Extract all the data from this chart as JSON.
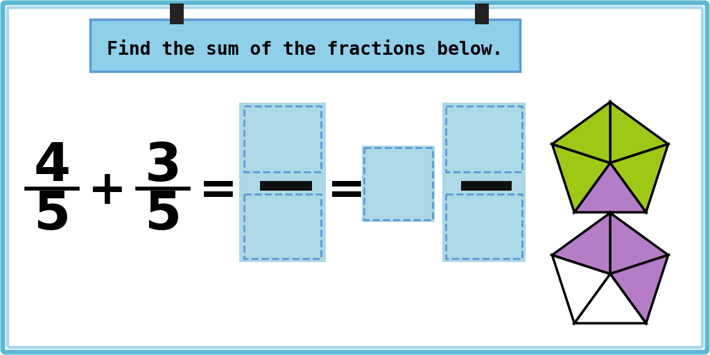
{
  "title": "Find the sum of the fractions below.",
  "bg_color": "#ffffff",
  "outer_border_color_outer": "#5BB8D4",
  "outer_border_color_inner": "#A8D8EA",
  "title_box_color": "#8ECFEA",
  "light_blue": "#ADD8E6",
  "fraction1_num": "4",
  "fraction1_den": "5",
  "fraction2_num": "3",
  "fraction2_den": "5",
  "green_color": "#9DC915",
  "purple_color": "#B57DC8",
  "white_color": "#ffffff",
  "dashed_color": "#5B9BD5",
  "bar_color": "#111111",
  "tab_color": "#222222"
}
